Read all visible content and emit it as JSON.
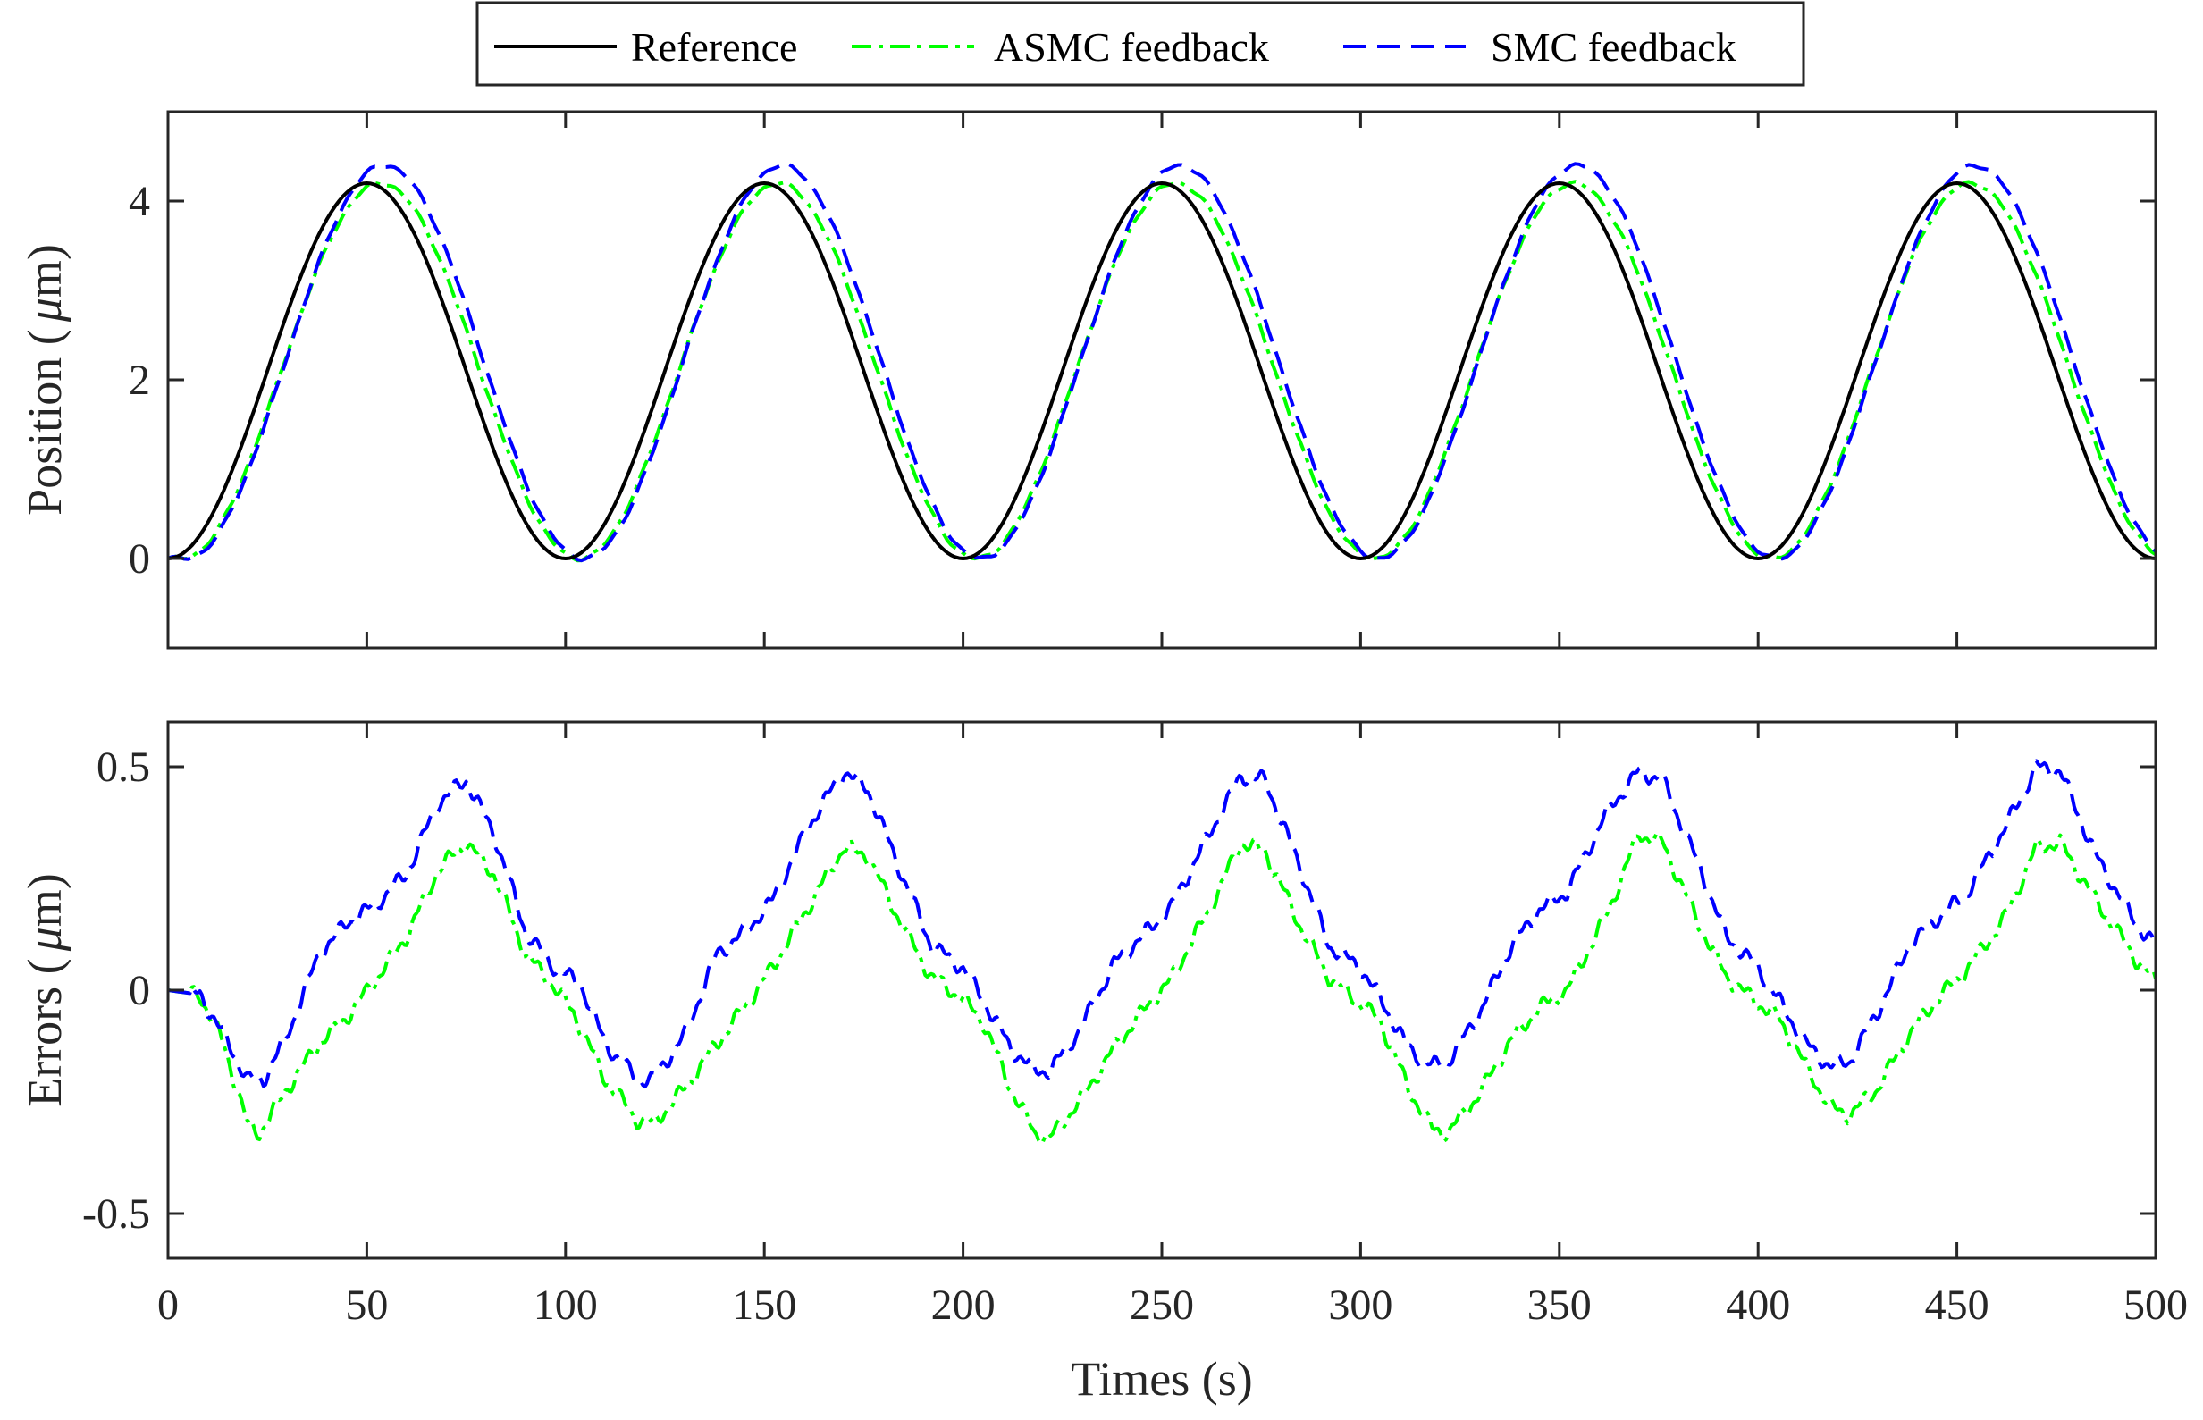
{
  "legend": {
    "entries": [
      {
        "label": "Reference",
        "color": "#000000",
        "dash": "solid"
      },
      {
        "label": "ASMC feedback",
        "color": "#00ff00",
        "dash": "dashdot"
      },
      {
        "label": "SMC feedback",
        "color": "#0000ff",
        "dash": "dashed"
      }
    ]
  },
  "chart_data": [
    {
      "type": "line",
      "ylabel_text": "Position (",
      "ylabel_mu": "μ",
      "ylabel_unit": "m)",
      "xlim": [
        0,
        500
      ],
      "ylim": [
        -1,
        5
      ],
      "xticks": [
        0,
        50,
        100,
        150,
        200,
        250,
        300,
        350,
        400,
        450,
        500
      ],
      "yticks": [
        0,
        2,
        4
      ],
      "ytick_labels": [
        "0",
        "2",
        "4"
      ],
      "period": 100,
      "series": [
        {
          "name": "Reference",
          "color": "#000000",
          "amplitude": 4.2,
          "delay": 0,
          "extra": 0
        },
        {
          "name": "ASMC feedback",
          "color": "#00ff00",
          "amplitude": 4.2,
          "delay": 3.5,
          "extra": 0
        },
        {
          "name": "SMC feedback",
          "color": "#0000ff",
          "amplitude": 4.2,
          "delay": 4.5,
          "extra": 0.2
        }
      ]
    },
    {
      "type": "line",
      "ylabel_text": "Errors (",
      "ylabel_mu": "μ",
      "ylabel_unit": "m)",
      "xlabel": "Times (s)",
      "xlim": [
        0,
        500
      ],
      "ylim": [
        -0.6,
        0.6
      ],
      "xticks": [
        0,
        50,
        100,
        150,
        200,
        250,
        300,
        350,
        400,
        450,
        500
      ],
      "xtick_labels": [
        "0",
        "50",
        "100",
        "150",
        "200",
        "250",
        "300",
        "350",
        "400",
        "450",
        "500"
      ],
      "yticks": [
        -0.5,
        0,
        0.5
      ],
      "ytick_labels": [
        "-0.5",
        "0",
        "0.5"
      ],
      "series": [
        {
          "name": "ASMC feedback",
          "color": "#00ff00",
          "points": [
            [
              0,
              0
            ],
            [
              8,
              -0.01
            ],
            [
              14,
              -0.12
            ],
            [
              20,
              -0.3
            ],
            [
              23,
              -0.32
            ],
            [
              30,
              -0.22
            ],
            [
              38,
              -0.12
            ],
            [
              45,
              -0.06
            ],
            [
              52,
              0.02
            ],
            [
              60,
              0.12
            ],
            [
              68,
              0.27
            ],
            [
              75,
              0.33
            ],
            [
              82,
              0.26
            ],
            [
              90,
              0.08
            ],
            [
              96,
              0.02
            ],
            [
              102,
              -0.05
            ],
            [
              110,
              -0.2
            ],
            [
              118,
              -0.29
            ],
            [
              122,
              -0.3
            ],
            [
              130,
              -0.22
            ],
            [
              138,
              -0.12
            ],
            [
              145,
              -0.04
            ],
            [
              152,
              0.05
            ],
            [
              162,
              0.2
            ],
            [
              170,
              0.32
            ],
            [
              176,
              0.3
            ],
            [
              185,
              0.14
            ],
            [
              192,
              0.03
            ],
            [
              200,
              -0.02
            ],
            [
              205,
              -0.07
            ],
            [
              212,
              -0.22
            ],
            [
              218,
              -0.32
            ],
            [
              222,
              -0.33
            ],
            [
              230,
              -0.24
            ],
            [
              238,
              -0.13
            ],
            [
              245,
              -0.05
            ],
            [
              252,
              0.02
            ],
            [
              262,
              0.18
            ],
            [
              270,
              0.33
            ],
            [
              276,
              0.31
            ],
            [
              285,
              0.14
            ],
            [
              292,
              0.03
            ],
            [
              300,
              -0.03
            ],
            [
              305,
              -0.07
            ],
            [
              312,
              -0.22
            ],
            [
              318,
              -0.31
            ],
            [
              322,
              -0.32
            ],
            [
              330,
              -0.23
            ],
            [
              338,
              -0.11
            ],
            [
              345,
              -0.04
            ],
            [
              352,
              0
            ],
            [
              362,
              0.17
            ],
            [
              370,
              0.35
            ],
            [
              376,
              0.33
            ],
            [
              385,
              0.15
            ],
            [
              392,
              0.03
            ],
            [
              400,
              -0.03
            ],
            [
              405,
              -0.06
            ],
            [
              412,
              -0.17
            ],
            [
              418,
              -0.26
            ],
            [
              423,
              -0.28
            ],
            [
              430,
              -0.22
            ],
            [
              438,
              -0.1
            ],
            [
              445,
              -0.02
            ],
            [
              452,
              0.04
            ],
            [
              462,
              0.16
            ],
            [
              470,
              0.32
            ],
            [
              476,
              0.33
            ],
            [
              485,
              0.2
            ],
            [
              495,
              0.07
            ],
            [
              500,
              0.02
            ]
          ]
        },
        {
          "name": "SMC feedback",
          "color": "#0000ff",
          "points": [
            [
              0,
              0
            ],
            [
              8,
              -0.01
            ],
            [
              14,
              -0.1
            ],
            [
              20,
              -0.2
            ],
            [
              24,
              -0.2
            ],
            [
              30,
              -0.1
            ],
            [
              38,
              0.08
            ],
            [
              45,
              0.15
            ],
            [
              52,
              0.19
            ],
            [
              60,
              0.26
            ],
            [
              68,
              0.42
            ],
            [
              75,
              0.47
            ],
            [
              82,
              0.35
            ],
            [
              90,
              0.13
            ],
            [
              96,
              0.06
            ],
            [
              104,
              0.01
            ],
            [
              110,
              -0.12
            ],
            [
              118,
              -0.2
            ],
            [
              122,
              -0.2
            ],
            [
              130,
              -0.1
            ],
            [
              138,
              0.08
            ],
            [
              145,
              0.13
            ],
            [
              152,
              0.2
            ],
            [
              162,
              0.38
            ],
            [
              170,
              0.49
            ],
            [
              176,
              0.45
            ],
            [
              185,
              0.25
            ],
            [
              192,
              0.1
            ],
            [
              200,
              0.05
            ],
            [
              205,
              -0.02
            ],
            [
              212,
              -0.13
            ],
            [
              218,
              -0.18
            ],
            [
              222,
              -0.18
            ],
            [
              230,
              -0.08
            ],
            [
              238,
              0.06
            ],
            [
              245,
              0.12
            ],
            [
              252,
              0.18
            ],
            [
              262,
              0.35
            ],
            [
              270,
              0.48
            ],
            [
              276,
              0.47
            ],
            [
              285,
              0.27
            ],
            [
              292,
              0.1
            ],
            [
              300,
              0.05
            ],
            [
              305,
              -0.02
            ],
            [
              312,
              -0.13
            ],
            [
              318,
              -0.17
            ],
            [
              322,
              -0.16
            ],
            [
              330,
              -0.05
            ],
            [
              338,
              0.1
            ],
            [
              345,
              0.18
            ],
            [
              352,
              0.22
            ],
            [
              362,
              0.4
            ],
            [
              370,
              0.49
            ],
            [
              376,
              0.47
            ],
            [
              385,
              0.28
            ],
            [
              392,
              0.12
            ],
            [
              400,
              0.05
            ],
            [
              405,
              -0.02
            ],
            [
              412,
              -0.12
            ],
            [
              418,
              -0.17
            ],
            [
              423,
              -0.16
            ],
            [
              430,
              -0.05
            ],
            [
              438,
              0.1
            ],
            [
              445,
              0.16
            ],
            [
              452,
              0.21
            ],
            [
              462,
              0.36
            ],
            [
              470,
              0.5
            ],
            [
              476,
              0.49
            ],
            [
              485,
              0.3
            ],
            [
              495,
              0.15
            ],
            [
              500,
              0.1
            ]
          ]
        }
      ]
    }
  ]
}
